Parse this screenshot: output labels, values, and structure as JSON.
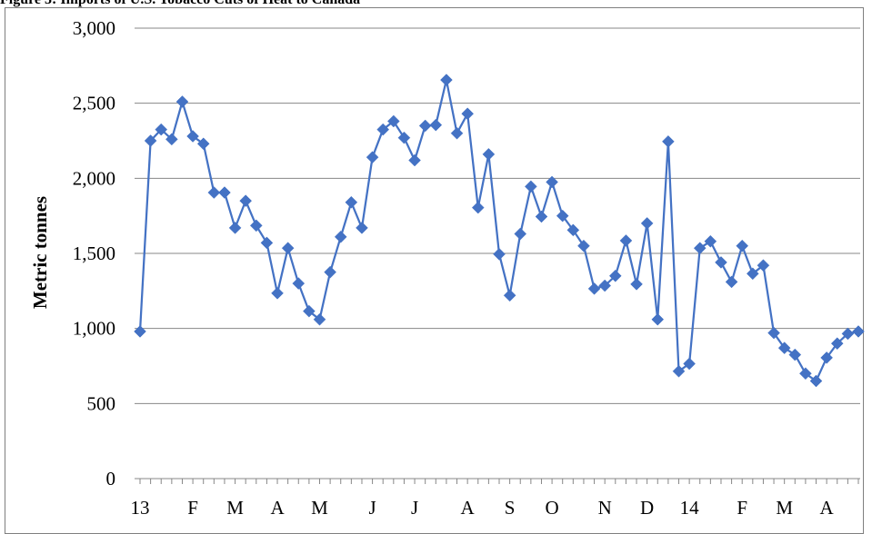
{
  "caption": "Figure 3: Imports of U.S. Tobacco Cuts of Heat to Canada",
  "chart_data": {
    "type": "line",
    "ylabel": "Metric tonnes",
    "ylim": [
      0,
      3000
    ],
    "yticks": [
      "0",
      "500",
      "1,000",
      "1,500",
      "2,000",
      "2,500",
      "3,000"
    ],
    "ytick_values": [
      0,
      500,
      1000,
      1500,
      2000,
      2500,
      3000
    ],
    "month_labels": [
      {
        "label": "13",
        "index": 0
      },
      {
        "label": "F",
        "index": 5
      },
      {
        "label": "M",
        "index": 9
      },
      {
        "label": "A",
        "index": 13
      },
      {
        "label": "M",
        "index": 17
      },
      {
        "label": "J",
        "index": 22
      },
      {
        "label": "J",
        "index": 26
      },
      {
        "label": "A",
        "index": 31
      },
      {
        "label": "S",
        "index": 35
      },
      {
        "label": "O",
        "index": 39
      },
      {
        "label": "N",
        "index": 44
      },
      {
        "label": "D",
        "index": 48
      },
      {
        "label": "14",
        "index": 52
      },
      {
        "label": "F",
        "index": 57
      },
      {
        "label": "M",
        "index": 61
      },
      {
        "label": "A",
        "index": 65
      }
    ],
    "grid": true,
    "marker": "diamond",
    "color": "#4472C4",
    "series": [
      {
        "values": [
          980,
          2250,
          2325,
          2260,
          2510,
          2280,
          2230,
          1905,
          1905,
          1670,
          1850,
          1685,
          1570,
          1235,
          1535,
          1300,
          1115,
          1060,
          1375,
          1610,
          1840,
          1670,
          2140,
          2325,
          2380,
          2270,
          2120,
          2350,
          2355,
          2655,
          2300,
          2430,
          1805,
          2160,
          1495,
          1220,
          1630,
          1945,
          1745,
          1975,
          1750,
          1655,
          1550,
          1265,
          1285,
          1350,
          1585,
          1295,
          1700,
          1060,
          2245,
          715,
          765,
          1535,
          1580,
          1440,
          1310,
          1550,
          1365,
          1420,
          970,
          870,
          825,
          700,
          650,
          805,
          900,
          965,
          980
        ]
      }
    ]
  }
}
